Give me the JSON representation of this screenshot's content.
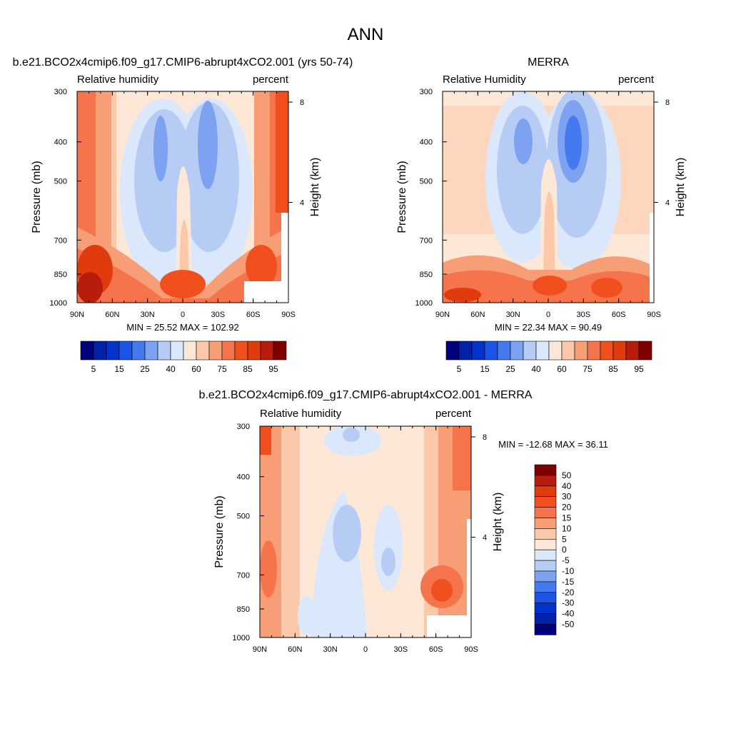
{
  "figure": {
    "title": "ANN",
    "colors": {
      "rh_levels": [
        "#00007f",
        "#0021a8",
        "#0033cc",
        "#1a55e8",
        "#4479f0",
        "#7ea2f2",
        "#b6ccf5",
        "#dbe8fb",
        "#fde8d8",
        "#fbc8aa",
        "#f79e77",
        "#f5744b",
        "#f24f1e",
        "#e03a0d",
        "#b71c0c",
        "#7f0000"
      ],
      "diff_levels": [
        "#7f0000",
        "#b71c0c",
        "#e03a0d",
        "#f24f1e",
        "#f5744b",
        "#f79e77",
        "#fbc8aa",
        "#fde8d8",
        "#dbe8fb",
        "#b6ccf5",
        "#7ea2f2",
        "#4479f0",
        "#1a55e8",
        "#0033cc",
        "#0021a8",
        "#00007f"
      ]
    }
  },
  "chart_data": [
    {
      "type": "heatmap",
      "id": "model",
      "title": "b.e21.BCO2x4cmip6.f09_g17.CMIP6-abrupt4xCO2.001 (yrs 50-74)",
      "left_label": "Relative humidity",
      "right_label": "percent",
      "ylabel": "Pressure (mb)",
      "ylabel_right": "Height (km)",
      "x_ticks": [
        "90N",
        "60N",
        "30N",
        "0",
        "30S",
        "60S",
        "90S"
      ],
      "x_values": [
        90,
        60,
        30,
        0,
        -30,
        -60,
        -90
      ],
      "y_ticks": [
        "300",
        "400",
        "500",
        "700",
        "850",
        "1000"
      ],
      "y_values": [
        300,
        400,
        500,
        700,
        850,
        1000
      ],
      "y_right_ticks": [
        "8",
        "4"
      ],
      "y_right_values_km": [
        8,
        4
      ],
      "stats": "MIN =  25.52  MAX = 102.92",
      "min": 25.52,
      "max": 102.92,
      "colorbar_labels": [
        "5",
        "15",
        "25",
        "40",
        "60",
        "75",
        "85",
        "95"
      ]
    },
    {
      "type": "heatmap",
      "id": "obs",
      "title": "MERRA",
      "left_label": "Relative Humidity",
      "right_label": "percent",
      "ylabel": "Pressure (mb)",
      "ylabel_right": "Height (km)",
      "x_ticks": [
        "90N",
        "60N",
        "30N",
        "0",
        "30S",
        "60S",
        "90S"
      ],
      "x_values": [
        90,
        60,
        30,
        0,
        -30,
        -60,
        -90
      ],
      "y_ticks": [
        "300",
        "400",
        "500",
        "700",
        "850",
        "1000"
      ],
      "y_values": [
        300,
        400,
        500,
        700,
        850,
        1000
      ],
      "y_right_ticks": [
        "8",
        "4"
      ],
      "y_right_values_km": [
        8,
        4
      ],
      "stats": "MIN =  22.34  MAX =  90.49",
      "min": 22.34,
      "max": 90.49,
      "colorbar_labels": [
        "5",
        "15",
        "25",
        "40",
        "60",
        "75",
        "85",
        "95"
      ]
    },
    {
      "type": "heatmap",
      "id": "diff",
      "title": "b.e21.BCO2x4cmip6.f09_g17.CMIP6-abrupt4xCO2.001 - MERRA",
      "left_label": "Relative humidity",
      "right_label": "percent",
      "ylabel": "Pressure (mb)",
      "ylabel_right": "Height (km)",
      "x_ticks": [
        "90N",
        "60N",
        "30N",
        "0",
        "30S",
        "60S",
        "90S"
      ],
      "x_values": [
        90,
        60,
        30,
        0,
        -30,
        -60,
        -90
      ],
      "y_ticks": [
        "300",
        "400",
        "500",
        "700",
        "850",
        "1000"
      ],
      "y_values": [
        300,
        400,
        500,
        700,
        850,
        1000
      ],
      "y_right_ticks": [
        "8",
        "4"
      ],
      "y_right_values_km": [
        8,
        4
      ],
      "stats": "MIN = -12.68  MAX =  36.11",
      "min": -12.68,
      "max": 36.11,
      "colorbar_labels": [
        "50",
        "40",
        "30",
        "20",
        "15",
        "10",
        "5",
        "0",
        "-5",
        "-10",
        "-15",
        "-20",
        "-30",
        "-40",
        "-50"
      ]
    }
  ]
}
